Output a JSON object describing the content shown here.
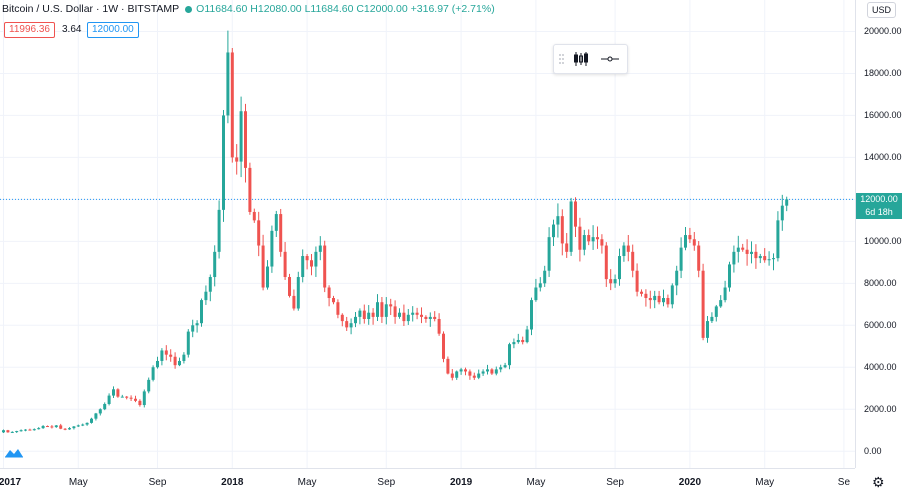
{
  "header": {
    "symbol": "Bitcoin / U.S. Dollar · 1W · BITSTAMP",
    "ohlc": "O11684.60 H12080.00 L11684.60 C12000.00 +316.97 (+2.71%)",
    "sell_price": "11996.36",
    "spread": "3.64",
    "buy_price": "12000.00"
  },
  "price_axis": {
    "currency": "USD",
    "labels": [
      "20000.00",
      "18000.00",
      "16000.00",
      "14000.00",
      "12000.00",
      "10000.00",
      "8000.00",
      "6000.00",
      "4000.00",
      "2000.00",
      "0.00"
    ],
    "last_price_label": "12000.00",
    "countdown": "6d 18h"
  },
  "time_axis": {
    "labels": [
      {
        "text": "2017",
        "week": 0,
        "year": true
      },
      {
        "text": "May",
        "week": 17,
        "year": false
      },
      {
        "text": "Sep",
        "week": 35,
        "year": false
      },
      {
        "text": "2018",
        "week": 52,
        "year": true
      },
      {
        "text": "May",
        "week": 69,
        "year": false
      },
      {
        "text": "Sep",
        "week": 87,
        "year": false
      },
      {
        "text": "2019",
        "week": 104,
        "year": true
      },
      {
        "text": "May",
        "week": 121,
        "year": false
      },
      {
        "text": "Sep",
        "week": 139,
        "year": false
      },
      {
        "text": "2020",
        "week": 156,
        "year": true
      },
      {
        "text": "May",
        "week": 173,
        "year": false
      },
      {
        "text": "Se",
        "week": 191,
        "year": false
      }
    ]
  },
  "colors": {
    "up": "#26a69a",
    "down": "#ef5350",
    "grid": "#f0f3fa",
    "price_line": "#2196f3"
  },
  "chart_data": {
    "type": "candlestick",
    "title": "Bitcoin / U.S. Dollar · 1W · BITSTAMP",
    "ylim": [
      -800,
      21500
    ],
    "last_price": 12000,
    "closes": [
      1000,
      900,
      920,
      960,
      1000,
      1030,
      1000,
      1050,
      1100,
      1200,
      1180,
      1150,
      1230,
      1070,
      1040,
      1100,
      1180,
      1230,
      1270,
      1350,
      1550,
      1800,
      2000,
      2250,
      2650,
      2950,
      2600,
      2600,
      2550,
      2500,
      2400,
      2200,
      2850,
      3400,
      4000,
      4300,
      4800,
      4600,
      4500,
      4100,
      4300,
      4600,
      5700,
      6000,
      6100,
      7200,
      7600,
      8300,
      9500,
      11500,
      16000,
      19000,
      14000,
      13800,
      16200,
      13500,
      11400,
      11000,
      9800,
      7800,
      8800,
      10500,
      11300,
      9500,
      8300,
      7400,
      6800,
      8300,
      9300,
      9100,
      8800,
      9500,
      9800,
      7800,
      7300,
      7100,
      6500,
      6200,
      5900,
      6100,
      6400,
      6700,
      6300,
      6600,
      6400,
      7100,
      6400,
      7000,
      6900,
      6400,
      6600,
      6200,
      6500,
      6600,
      6500,
      6400,
      6300,
      6400,
      6300,
      5600,
      4400,
      3700,
      3500,
      3800,
      3900,
      3800,
      3600,
      3500,
      3700,
      3800,
      3900,
      3700,
      3900,
      4000,
      4100,
      5100,
      5200,
      5300,
      5200,
      5800,
      7200,
      7800,
      8000,
      8600,
      10200,
      10800,
      11200,
      9900,
      9500,
      11900,
      10700,
      9600,
      10300,
      10000,
      10200,
      10100,
      9800,
      8200,
      8000,
      8200,
      9300,
      9800,
      9500,
      8600,
      7600,
      7500,
      7300,
      7200,
      7400,
      7100,
      7300,
      7000,
      7900,
      8600,
      9700,
      10300,
      10100,
      9800,
      8600,
      5400,
      6200,
      6400,
      6900,
      7200,
      7800,
      8900,
      9500,
      9700,
      9600,
      9400,
      9500,
      9200,
      9300,
      9100,
      9150,
      9200,
      11000,
      11700,
      12000
    ]
  }
}
